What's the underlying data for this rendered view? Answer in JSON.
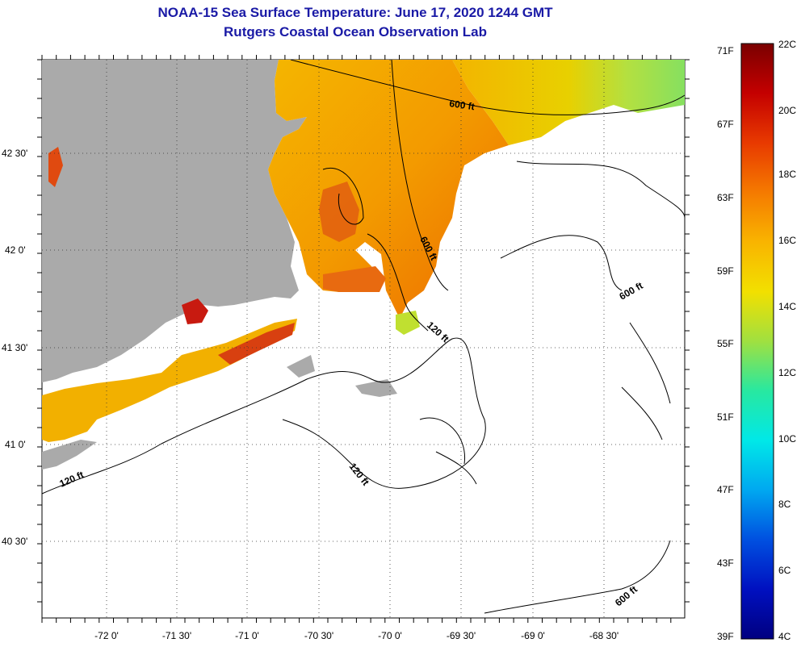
{
  "title": "NOAA-15 Sea Surface Temperature:  June 17, 2020 1244 GMT",
  "subtitle": "Rutgers Coastal Ocean Observation Lab",
  "axes": {
    "lon_labels": [
      "-72 0'",
      "-71 30'",
      "-71 0'",
      "-70 30'",
      "-70 0'",
      "-69 30'",
      "-69 0'",
      "-68 30'"
    ],
    "lat_labels": [
      "42 30'",
      "42 0'",
      "41 30'",
      "41 0'",
      "40 30'"
    ]
  },
  "contours": {
    "labels": [
      "600 ft",
      "600 ft",
      "600 ft",
      "600 ft",
      "120 ft",
      "120 ft",
      "120 ft"
    ]
  },
  "colorbar": {
    "fahrenheit": [
      "71F",
      "67F",
      "63F",
      "59F",
      "55F",
      "51F",
      "47F",
      "43F",
      "39F"
    ],
    "celsius": [
      "22C",
      "20C",
      "18C",
      "16C",
      "14C",
      "12C",
      "10C",
      "8C",
      "6C",
      "4C"
    ],
    "gradient": [
      "#7a0000",
      "#c40000",
      "#e83a00",
      "#f57a00",
      "#f9b400",
      "#f2e000",
      "#a0e040",
      "#28e8a0",
      "#00e8e8",
      "#00a8f0",
      "#0050e0",
      "#0010c0",
      "#000080"
    ]
  },
  "colors": {
    "land": "#aaaaaa",
    "water_no_data": "#ffffff",
    "title": "#1a1aa6"
  }
}
